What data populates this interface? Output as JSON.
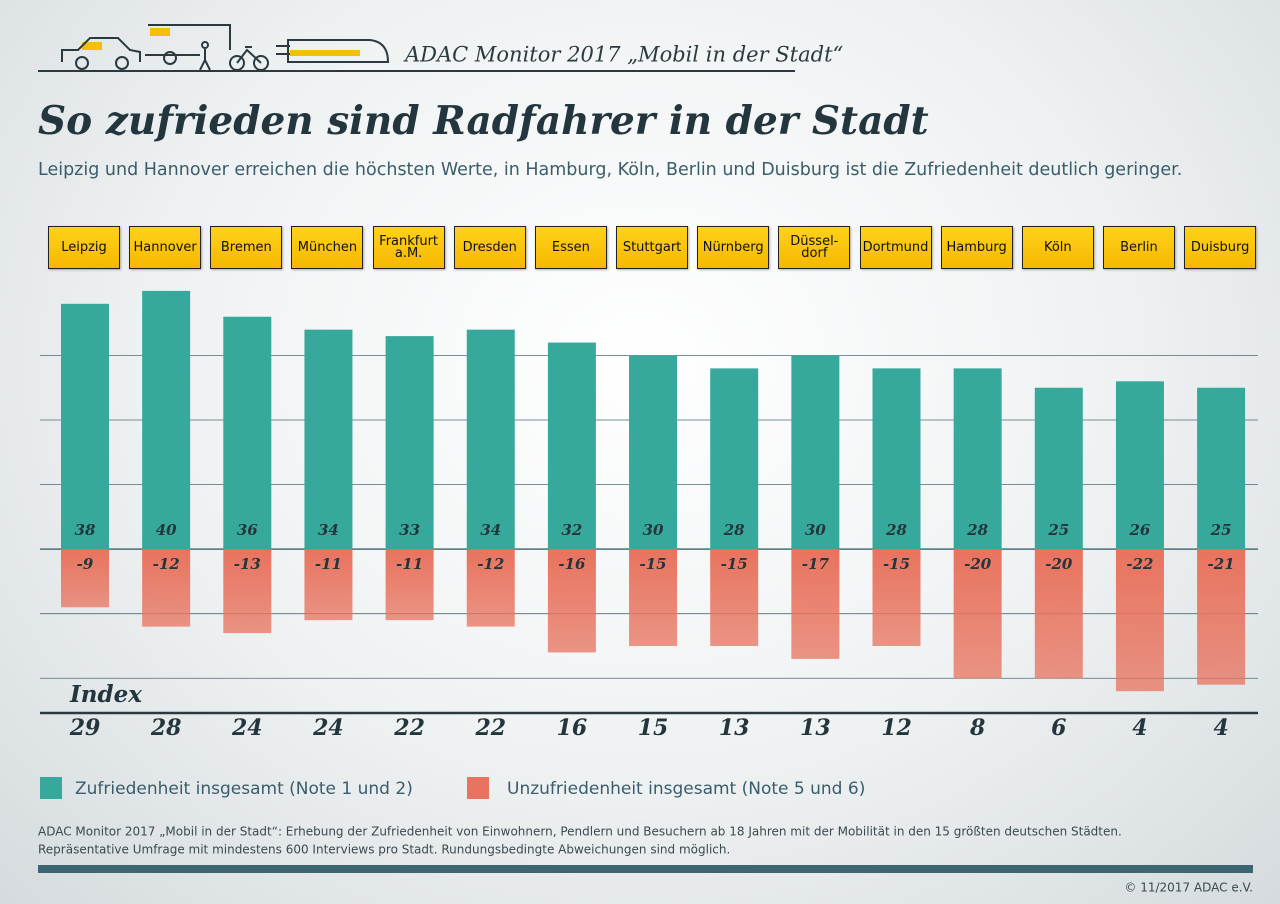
{
  "header": {
    "brand": "ADAC Monitor 2017 „Mobil in der Stadt“"
  },
  "chart_data": {
    "type": "bar",
    "title": "So zufrieden sind Radfahrer in der Stadt",
    "subtitle": "Leipzig und Hannover erreichen die höchsten Werte, in Hamburg, Köln, Berlin und Duisburg ist die Zufriedenheit deutlich geringer.",
    "categories": [
      "Leipzig",
      "Hannover",
      "Bremen",
      "München",
      "Frankfurt\na.M.",
      "Dresden",
      "Essen",
      "Stuttgart",
      "Nürnberg",
      "Düssel-\ndorf",
      "Dortmund",
      "Hamburg",
      "Köln",
      "Berlin",
      "Duisburg"
    ],
    "series": [
      {
        "name": "Zufriedenheit insgesamt (Note 1 und 2)",
        "color": "#36a99c",
        "values": [
          38,
          40,
          36,
          34,
          33,
          34,
          32,
          30,
          28,
          30,
          28,
          28,
          25,
          26,
          25
        ]
      },
      {
        "name": "Unzufriedenheit insgesamt (Note 5 und 6)",
        "color": "#e8735e",
        "values": [
          -9,
          -12,
          -13,
          -11,
          -11,
          -12,
          -16,
          -15,
          -15,
          -17,
          -15,
          -20,
          -20,
          -22,
          -21
        ]
      }
    ],
    "index_label": "Index",
    "index_values": [
      29,
      28,
      24,
      24,
      22,
      22,
      16,
      15,
      13,
      13,
      12,
      8,
      6,
      4,
      4
    ],
    "ylim": [
      -26,
      42
    ],
    "yticks": [
      -20,
      -10,
      0,
      10,
      20,
      30
    ],
    "grid": true
  },
  "footer": {
    "note": [
      "ADAC Monitor 2017 „Mobil in der Stadt“: Erhebung der Zufriedenheit von Einwohnern, Pendlern und Besuchern ab 18 Jahren mit der Mobilität in den 15 größten deutschen Städten.",
      "Repräsentative Umfrage mit mindestens 600 Interviews pro Stadt. Rundungsbedingte Abweichungen sind möglich."
    ],
    "copyright": "© 11/2017 ADAC e.V."
  }
}
